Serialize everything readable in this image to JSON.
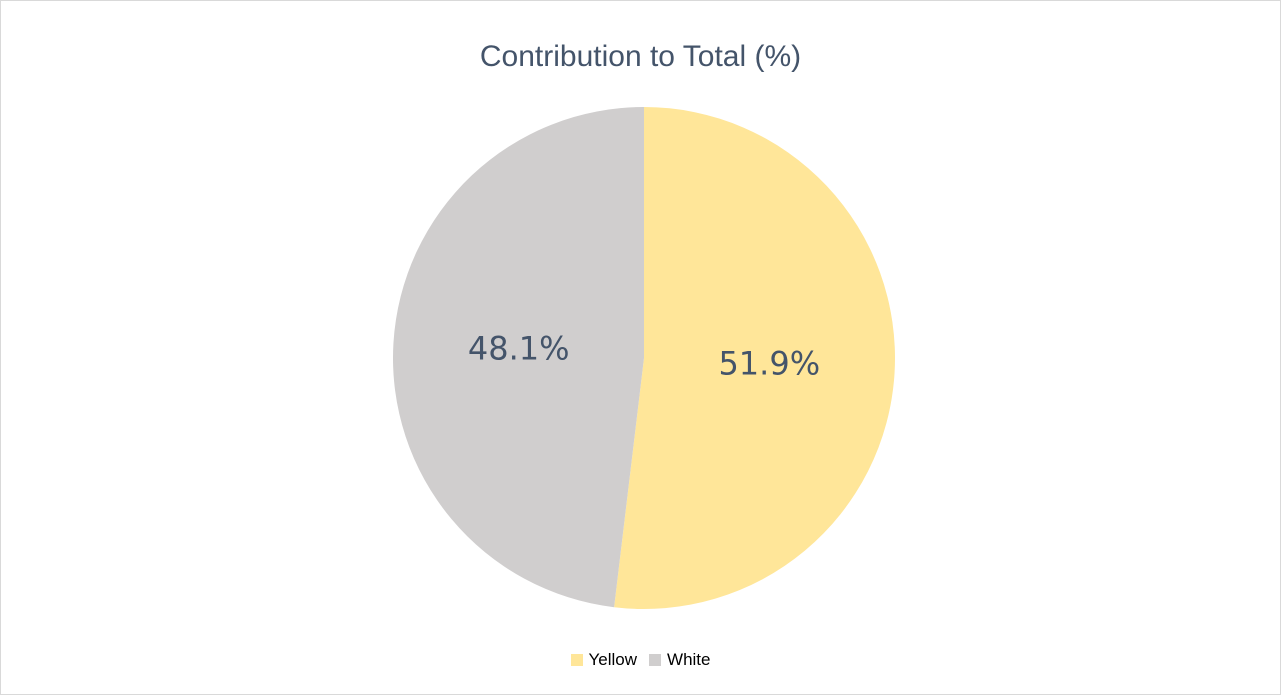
{
  "chart_data": {
    "type": "pie",
    "title": "Contribution to Total (%)",
    "start_angle_deg": 0,
    "direction": "clockwise",
    "legend_position": "bottom",
    "slices": [
      {
        "name": "Yellow",
        "value": 51.9,
        "label": "51.9%",
        "color": "#ffe699"
      },
      {
        "name": "White",
        "value": 48.1,
        "label": "48.1%",
        "color": "#d0cece"
      }
    ]
  }
}
